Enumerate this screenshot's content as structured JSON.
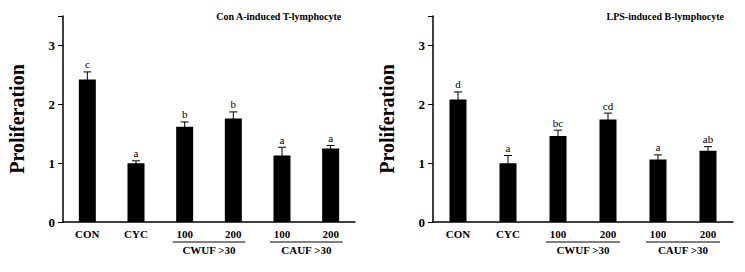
{
  "chart_data": [
    {
      "type": "bar",
      "title": "Con A-induced T-lymphocyte",
      "y_label": "Proliferation",
      "categories": [
        "CON",
        "CYC",
        "100",
        "200",
        "100",
        "200"
      ],
      "values": [
        2.42,
        1.0,
        1.62,
        1.76,
        1.13,
        1.25
      ],
      "errors": [
        0.13,
        0.04,
        0.08,
        0.11,
        0.14,
        0.05
      ],
      "significance_letters": [
        "c",
        "a",
        "b",
        "b",
        "a",
        "a"
      ],
      "groups": [
        {
          "label": "CWUF >30",
          "members": [
            2,
            3
          ]
        },
        {
          "label": "CAUF >30",
          "members": [
            4,
            5
          ]
        }
      ],
      "color": "#000000",
      "ylim": [
        0,
        3.5
      ],
      "yticks": [
        0,
        1,
        2,
        3
      ],
      "grid": false
    },
    {
      "type": "bar",
      "title": "LPS-induced B-lymphocyte",
      "y_label": "Proliferation",
      "categories": [
        "CON",
        "CYC",
        "100",
        "200",
        "100",
        "200"
      ],
      "values": [
        2.08,
        1.0,
        1.46,
        1.74,
        1.06,
        1.21
      ],
      "errors": [
        0.13,
        0.13,
        0.1,
        0.11,
        0.08,
        0.07
      ],
      "significance_letters": [
        "d",
        "a",
        "bc",
        "cd",
        "a",
        "ab"
      ],
      "groups": [
        {
          "label": "CWUF >30",
          "members": [
            2,
            3
          ]
        },
        {
          "label": "CAUF >30",
          "members": [
            4,
            5
          ]
        }
      ],
      "color": "#000000",
      "ylim": [
        0,
        3.5
      ],
      "yticks": [
        0,
        1,
        2,
        3
      ],
      "grid": false
    }
  ]
}
